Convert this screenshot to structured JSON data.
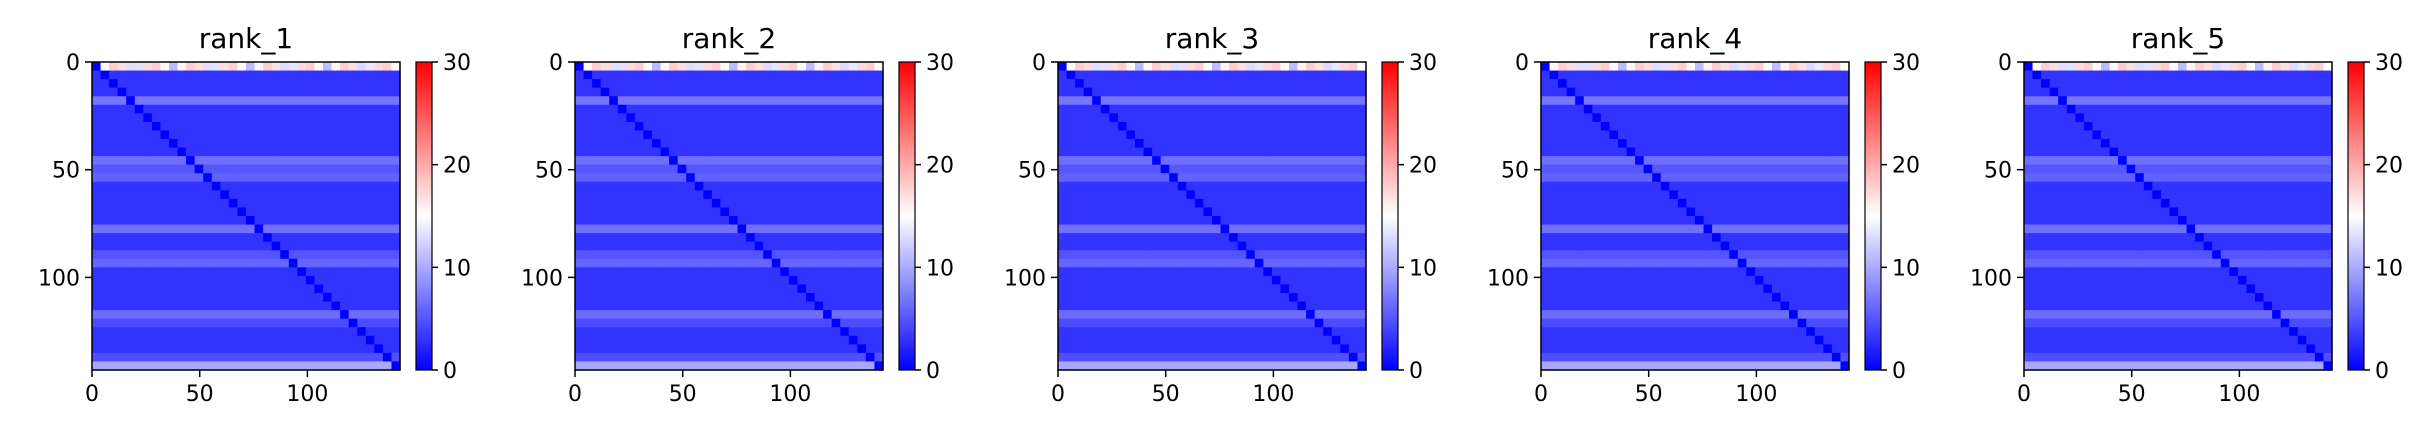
{
  "chart_data": [
    {
      "type": "heatmap",
      "title": "rank_1",
      "xlim": [
        0,
        143
      ],
      "ylim": [
        143,
        0
      ],
      "x_ticks": [
        0,
        50,
        100
      ],
      "y_ticks": [
        0,
        50,
        100
      ],
      "colorbar": {
        "min": 0,
        "max": 30,
        "ticks": [
          0,
          10,
          20,
          30
        ]
      },
      "colormap": [
        "#0000ff",
        "#ffffff",
        "#ff0000"
      ],
      "pattern": {
        "baseline_value": 3,
        "diagonal_value": 0,
        "band_rows": [
          18,
          45,
          52,
          78,
          92,
          118,
          140
        ],
        "band_value": 7,
        "edge_value": 18
      }
    },
    {
      "type": "heatmap",
      "title": "rank_2",
      "xlim": [
        0,
        143
      ],
      "ylim": [
        143,
        0
      ],
      "x_ticks": [
        0,
        50,
        100
      ],
      "y_ticks": [
        0,
        50,
        100
      ],
      "colorbar": {
        "min": 0,
        "max": 30,
        "ticks": [
          0,
          10,
          20,
          30
        ]
      },
      "colormap": [
        "#0000ff",
        "#ffffff",
        "#ff0000"
      ],
      "pattern": {
        "baseline_value": 3,
        "diagonal_value": 0,
        "band_rows": [
          18,
          45,
          52,
          78,
          92,
          118,
          140
        ],
        "band_value": 7,
        "edge_value": 18
      }
    },
    {
      "type": "heatmap",
      "title": "rank_3",
      "xlim": [
        0,
        143
      ],
      "ylim": [
        143,
        0
      ],
      "x_ticks": [
        0,
        50,
        100
      ],
      "y_ticks": [
        0,
        50,
        100
      ],
      "colorbar": {
        "min": 0,
        "max": 30,
        "ticks": [
          0,
          10,
          20,
          30
        ]
      },
      "colormap": [
        "#0000ff",
        "#ffffff",
        "#ff0000"
      ],
      "pattern": {
        "baseline_value": 3,
        "diagonal_value": 0,
        "band_rows": [
          18,
          45,
          52,
          78,
          92,
          118,
          140
        ],
        "band_value": 7,
        "edge_value": 18
      }
    },
    {
      "type": "heatmap",
      "title": "rank_4",
      "xlim": [
        0,
        143
      ],
      "ylim": [
        143,
        0
      ],
      "x_ticks": [
        0,
        50,
        100
      ],
      "y_ticks": [
        0,
        50,
        100
      ],
      "colorbar": {
        "min": 0,
        "max": 30,
        "ticks": [
          0,
          10,
          20,
          30
        ]
      },
      "colormap": [
        "#0000ff",
        "#ffffff",
        "#ff0000"
      ],
      "pattern": {
        "baseline_value": 3,
        "diagonal_value": 0,
        "band_rows": [
          18,
          45,
          52,
          78,
          92,
          118,
          140
        ],
        "band_value": 7,
        "edge_value": 18
      }
    },
    {
      "type": "heatmap",
      "title": "rank_5",
      "xlim": [
        0,
        143
      ],
      "ylim": [
        143,
        0
      ],
      "x_ticks": [
        0,
        50,
        100
      ],
      "y_ticks": [
        0,
        50,
        100
      ],
      "colorbar": {
        "min": 0,
        "max": 30,
        "ticks": [
          0,
          10,
          20,
          30
        ]
      },
      "colormap": [
        "#0000ff",
        "#ffffff",
        "#ff0000"
      ],
      "pattern": {
        "baseline_value": 3,
        "diagonal_value": 0,
        "band_rows": [
          18,
          45,
          52,
          78,
          92,
          118,
          140
        ],
        "band_value": 7,
        "edge_value": 18
      }
    }
  ]
}
